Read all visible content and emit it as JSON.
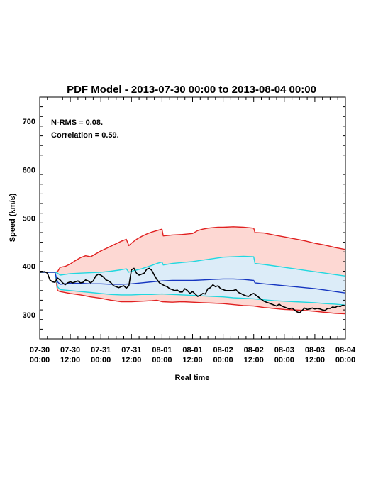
{
  "chart_data": {
    "type": "line",
    "title": "PDF Model - 2013-07-30 00:00 to 2013-08-04 00:00",
    "xlabel": "Real time",
    "ylabel": "Speed (km/s)",
    "xlim": [
      0,
      120
    ],
    "ylim": [
      250,
      750
    ],
    "y_ticks": [
      300,
      400,
      500,
      600,
      700
    ],
    "x_ticks": [
      {
        "hour": 0,
        "line1": "07-30",
        "line2": "00:00"
      },
      {
        "hour": 12,
        "line1": "07-30",
        "line2": "12:00"
      },
      {
        "hour": 24,
        "line1": "07-31",
        "line2": "00:00"
      },
      {
        "hour": 36,
        "line1": "07-31",
        "line2": "12:00"
      },
      {
        "hour": 48,
        "line1": "08-01",
        "line2": "00:00"
      },
      {
        "hour": 60,
        "line1": "08-01",
        "line2": "12:00"
      },
      {
        "hour": 72,
        "line1": "08-02",
        "line2": "00:00"
      },
      {
        "hour": 84,
        "line1": "08-02",
        "line2": "12:00"
      },
      {
        "hour": 96,
        "line1": "08-03",
        "line2": "00:00"
      },
      {
        "hour": 108,
        "line1": "08-03",
        "line2": "12:00"
      },
      {
        "hour": 120,
        "line1": "08-04",
        "line2": "00:00"
      }
    ],
    "annotations": [
      "N-RMS = 0.08.",
      "Correlation = 0.59."
    ],
    "grid": false,
    "series": [
      {
        "role": "outer-upper-bound",
        "color": "#e02020",
        "x": [
          0,
          6,
          7,
          8,
          10,
          12,
          14,
          16,
          18,
          20,
          22,
          24,
          26,
          28,
          30,
          32,
          34,
          35,
          36,
          38,
          40,
          42,
          44,
          46,
          48,
          48.5,
          52,
          56,
          60,
          62,
          64,
          66,
          68,
          70,
          72,
          76,
          80,
          84,
          84.5,
          88,
          92,
          96,
          100,
          104,
          108,
          112,
          116,
          120
        ],
        "y": [
          388,
          388,
          389,
          398,
          400,
          405,
          412,
          418,
          422,
          420,
          426,
          432,
          437,
          442,
          447,
          452,
          456,
          443,
          448,
          456,
          462,
          467,
          471,
          474,
          477,
          463,
          465,
          466,
          468,
          474,
          477,
          479,
          480,
          481,
          481,
          482,
          481,
          479,
          470,
          469,
          465,
          461,
          457,
          453,
          448,
          444,
          439,
          435
        ]
      },
      {
        "role": "inner-upper-bound",
        "color": "#20d8e0",
        "x": [
          0,
          6,
          7,
          8,
          12,
          16,
          20,
          24,
          28,
          32,
          34,
          35,
          36,
          40,
          44,
          46,
          48,
          48.5,
          52,
          56,
          60,
          64,
          68,
          72,
          76,
          80,
          84,
          84.5,
          88,
          92,
          96,
          100,
          104,
          108,
          112,
          116,
          120
        ],
        "y": [
          388,
          388,
          386,
          382,
          385,
          386,
          387,
          388,
          390,
          393,
          395,
          388,
          390,
          395,
          402,
          406,
          409,
          403,
          406,
          408,
          410,
          413,
          416,
          419,
          420,
          421,
          420,
          406,
          404,
          401,
          398,
          395,
          392,
          389,
          386,
          383,
          380
        ]
      },
      {
        "role": "central-model",
        "color": "#1535c0",
        "x": [
          0,
          6,
          7,
          8,
          12,
          16,
          20,
          24,
          28,
          32,
          36,
          40,
          44,
          48,
          52,
          56,
          60,
          64,
          68,
          72,
          76,
          80,
          84,
          84.5,
          88,
          92,
          96,
          100,
          104,
          108,
          112,
          116,
          120
        ],
        "y": [
          388,
          388,
          368,
          363,
          365,
          365,
          364,
          364,
          363,
          363,
          364,
          366,
          368,
          370,
          371,
          371,
          371,
          372,
          373,
          374,
          374,
          373,
          371,
          366,
          364,
          362,
          360,
          358,
          356,
          354,
          351,
          348,
          345
        ]
      },
      {
        "role": "inner-lower-bound",
        "color": "#20d8e0",
        "x": [
          0,
          6,
          7,
          8,
          12,
          16,
          20,
          24,
          28,
          32,
          36,
          40,
          44,
          48,
          52,
          56,
          60,
          64,
          68,
          72,
          76,
          80,
          84,
          88,
          92,
          96,
          100,
          104,
          108,
          112,
          116,
          120
        ],
        "y": [
          388,
          388,
          358,
          352,
          350,
          348,
          346,
          344,
          342,
          341,
          341,
          342,
          342,
          343,
          342,
          341,
          340,
          339,
          338,
          337,
          335,
          334,
          333,
          331,
          329,
          328,
          327,
          326,
          325,
          323,
          322,
          320
        ]
      },
      {
        "role": "outer-lower-bound",
        "color": "#e02020",
        "x": [
          0,
          6,
          7,
          8,
          12,
          16,
          20,
          24,
          28,
          32,
          36,
          40,
          44,
          46,
          48,
          52,
          56,
          60,
          64,
          68,
          72,
          76,
          80,
          84,
          88,
          92,
          96,
          100,
          104,
          108,
          112,
          116,
          120
        ],
        "y": [
          388,
          388,
          350,
          348,
          344,
          341,
          337,
          334,
          330,
          327,
          327,
          328,
          329,
          330,
          327,
          326,
          327,
          326,
          325,
          324,
          323,
          321,
          319,
          318,
          315,
          313,
          311,
          310,
          309,
          307,
          305,
          303,
          302
        ]
      },
      {
        "role": "observed",
        "color": "#000000",
        "x": [
          0,
          2,
          3,
          4,
          5,
          6,
          7,
          8,
          9,
          10,
          11,
          12,
          13,
          14,
          15,
          16,
          17,
          18,
          19,
          20,
          21,
          22,
          23,
          24,
          25,
          26,
          27,
          28,
          29,
          30,
          31,
          32,
          33,
          34,
          35,
          36,
          37,
          38,
          39,
          40,
          41,
          42,
          43,
          44,
          45,
          46,
          47,
          48,
          49,
          50,
          51,
          52,
          53,
          54,
          55,
          56,
          57,
          58,
          59,
          60,
          61,
          62,
          63,
          64,
          65,
          66,
          67,
          68,
          69,
          70,
          71,
          72,
          73,
          74,
          75,
          76,
          77,
          78,
          79,
          80,
          81,
          82,
          83,
          84,
          85,
          86,
          87,
          88,
          89,
          90,
          91,
          92,
          93,
          94,
          95,
          96,
          97,
          98,
          99,
          100,
          101,
          102,
          103,
          104,
          105,
          106,
          107,
          108,
          109,
          110,
          111,
          112,
          113,
          114,
          115,
          116,
          117,
          118,
          119,
          120
        ],
        "y": [
          388,
          389,
          386,
          372,
          368,
          367,
          376,
          372,
          366,
          362,
          366,
          368,
          366,
          368,
          370,
          366,
          367,
          372,
          370,
          366,
          370,
          380,
          384,
          382,
          378,
          372,
          370,
          366,
          360,
          358,
          356,
          358,
          360,
          355,
          360,
          393,
          396,
          386,
          382,
          384,
          386,
          394,
          396,
          392,
          382,
          373,
          366,
          363,
          360,
          358,
          354,
          352,
          350,
          351,
          347,
          347,
          354,
          350,
          344,
          348,
          343,
          338,
          340,
          344,
          343,
          354,
          356,
          362,
          358,
          360,
          354,
          352,
          350,
          350,
          350,
          350,
          352,
          346,
          344,
          341,
          339,
          338,
          342,
          344,
          340,
          336,
          332,
          328,
          326,
          324,
          322,
          320,
          318,
          322,
          318,
          316,
          314,
          312,
          314,
          310,
          306,
          304,
          309,
          314,
          311,
          312,
          314,
          312,
          313,
          312,
          310,
          309,
          313,
          313,
          316,
          315,
          318,
          317,
          320,
          318
        ]
      }
    ]
  }
}
